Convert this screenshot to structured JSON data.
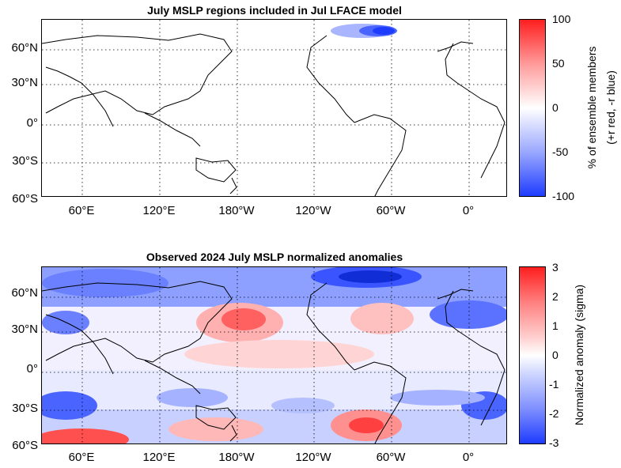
{
  "chart_data": [
    {
      "type": "heatmap",
      "title": "July MSLP regions included in Jul LFACE model",
      "y_ticks": [
        "60°N",
        "30°N",
        "0°",
        "30°S",
        "60°S"
      ],
      "x_ticks": [
        "60°E",
        "120°E",
        "180°W",
        "120°W",
        "60°W",
        "0°"
      ],
      "colorbar": {
        "ticks": [
          "100",
          "50",
          "0",
          "-50",
          "-100"
        ],
        "label_line1": "% of ensemble members",
        "label_line2": "(+r red, -r blue)",
        "range": [
          -100,
          100
        ]
      },
      "highlight_region": "Greenland / high-latitude North Atlantic, strong negative (blue)"
    },
    {
      "type": "heatmap",
      "title": "Observed 2024 July MSLP normalized anomalies",
      "y_ticks": [
        "60°N",
        "30°N",
        "0°",
        "30°S",
        "60°S"
      ],
      "x_ticks": [
        "60°E",
        "120°E",
        "180°W",
        "120°W",
        "60°W",
        "0°"
      ],
      "colorbar": {
        "ticks": [
          "3",
          "2",
          "1",
          "0",
          "-1",
          "-2",
          "-3"
        ],
        "label": "Normalized anomaly (sigma)",
        "range": [
          -3,
          3
        ]
      }
    }
  ],
  "colors": {
    "red": "#ff1e1e",
    "white": "#ffffff",
    "blue": "#1e3cff"
  }
}
